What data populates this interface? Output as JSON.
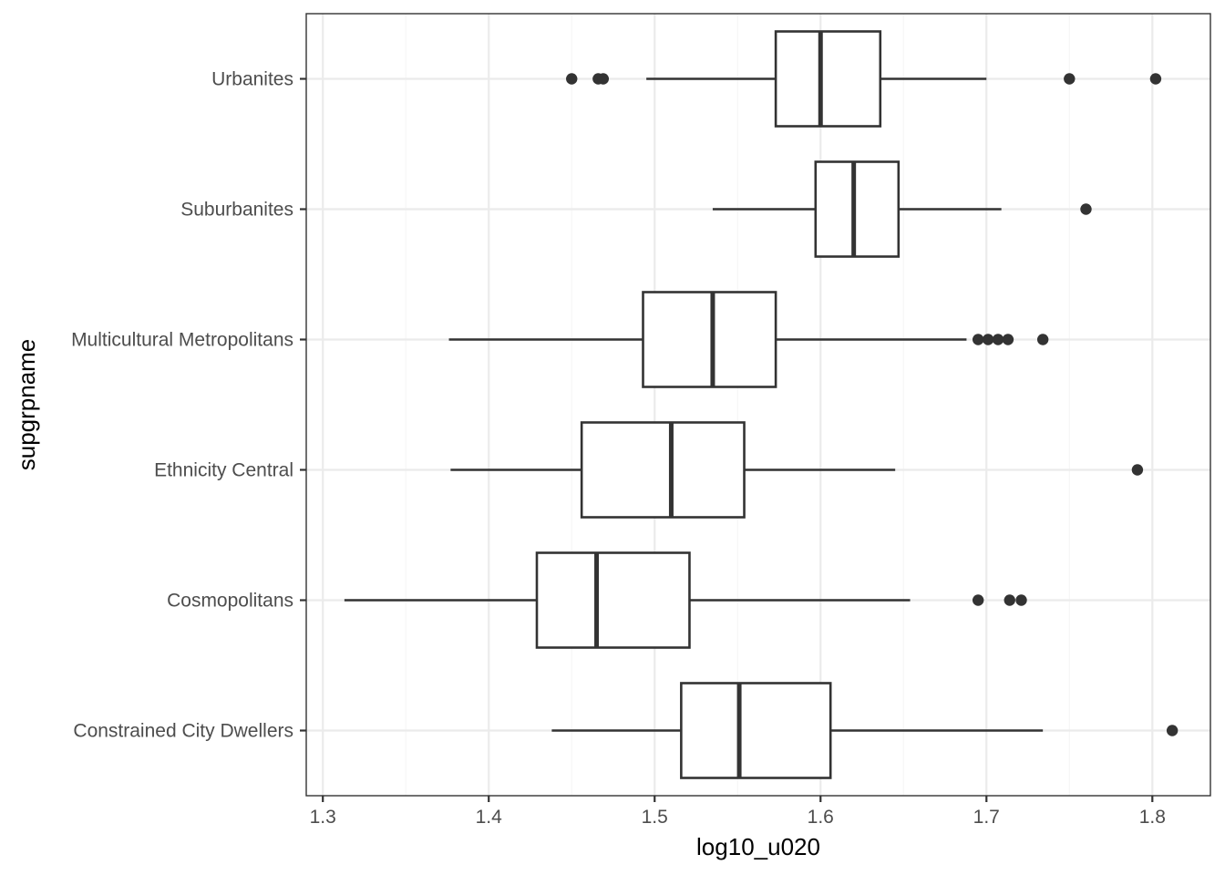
{
  "chart_data": {
    "type": "boxplot",
    "orientation": "horizontal",
    "xlabel": "log10_u020",
    "ylabel": "supgrpname",
    "xlim": [
      1.29,
      1.835
    ],
    "x_ticks": [
      "1.3",
      "1.4",
      "1.5",
      "1.6",
      "1.7",
      "1.8"
    ],
    "grid": true,
    "categories": [
      "Urbanites",
      "Suburbanites",
      "Multicultural Metropolitans",
      "Ethnicity Central",
      "Cosmopolitans",
      "Constrained City Dwellers"
    ],
    "boxes": [
      {
        "category": "Urbanites",
        "whisker_low": 1.495,
        "q1": 1.573,
        "median": 1.6,
        "q3": 1.636,
        "whisker_high": 1.7,
        "outliers": [
          1.45,
          1.466,
          1.469,
          1.75,
          1.802
        ]
      },
      {
        "category": "Suburbanites",
        "whisker_low": 1.535,
        "q1": 1.597,
        "median": 1.62,
        "q3": 1.647,
        "whisker_high": 1.709,
        "outliers": [
          1.76
        ]
      },
      {
        "category": "Multicultural Metropolitans",
        "whisker_low": 1.376,
        "q1": 1.493,
        "median": 1.535,
        "q3": 1.573,
        "whisker_high": 1.688,
        "outliers": [
          1.695,
          1.701,
          1.707,
          1.713,
          1.734
        ]
      },
      {
        "category": "Ethnicity Central",
        "whisker_low": 1.377,
        "q1": 1.456,
        "median": 1.51,
        "q3": 1.554,
        "whisker_high": 1.645,
        "outliers": [
          1.791
        ]
      },
      {
        "category": "Cosmopolitans",
        "whisker_low": 1.313,
        "q1": 1.429,
        "median": 1.465,
        "q3": 1.521,
        "whisker_high": 1.654,
        "outliers": [
          1.695,
          1.714,
          1.721
        ]
      },
      {
        "category": "Constrained City Dwellers",
        "whisker_low": 1.438,
        "q1": 1.516,
        "median": 1.551,
        "q3": 1.606,
        "whisker_high": 1.734,
        "outliers": [
          1.812
        ]
      }
    ]
  },
  "colors": {
    "box_stroke": "#333333",
    "box_fill": "#ffffff",
    "outlier_fill": "#333333",
    "grid_major": "#ebebeb",
    "grid_minor": "#f5f5f5",
    "panel_border": "#333333",
    "tick_text": "#4d4d4d",
    "title_text": "#000000"
  }
}
